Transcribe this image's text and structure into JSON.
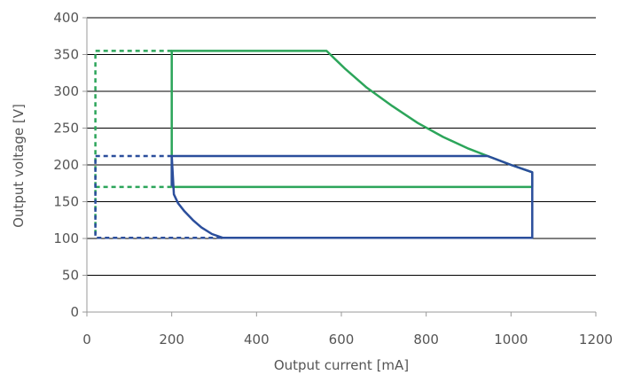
{
  "chart_data": {
    "type": "line",
    "title": "",
    "xlabel": "Output current [mA]",
    "ylabel": "Output voltage [V]",
    "xlim": [
      0,
      1200
    ],
    "ylim": [
      0,
      400
    ],
    "xticks": [
      0,
      200,
      400,
      600,
      800,
      1000,
      1200
    ],
    "yticks": [
      0,
      50,
      100,
      150,
      200,
      250,
      300,
      350,
      400
    ],
    "grid": "horizontal",
    "legend": "none",
    "colors": {
      "green": "#2ca55a",
      "blue": "#2b4e9c",
      "grid": "#000000",
      "axis": "#999999"
    },
    "series": [
      {
        "color": "#2ca55a",
        "style": "solid",
        "x": [
          200,
          200,
          565,
          610,
          660,
          720,
          780,
          840,
          900,
          945,
          1000,
          1050,
          1050,
          200
        ],
        "y": [
          170,
          355,
          355,
          330,
          305,
          280,
          257,
          238,
          222,
          212,
          200,
          190,
          170,
          170
        ]
      },
      {
        "color": "#2b4e9c",
        "style": "solid",
        "x": [
          200,
          200,
          205,
          215,
          230,
          250,
          270,
          295,
          320,
          1050,
          1050,
          1000,
          945,
          200
        ],
        "y": [
          170,
          212,
          160,
          148,
          137,
          125,
          115,
          106,
          101,
          101,
          190,
          200,
          212,
          212
        ]
      },
      {
        "color": "#2ca55a",
        "style": "dashed",
        "x": [
          200,
          20,
          20
        ],
        "y": [
          355,
          355,
          101
        ]
      },
      {
        "color": "#2ca55a",
        "style": "dashed",
        "x": [
          20,
          200
        ],
        "y": [
          170,
          170
        ]
      },
      {
        "color": "#2b4e9c",
        "style": "dashed",
        "x": [
          200,
          20,
          20,
          320
        ],
        "y": [
          212,
          212,
          101,
          101
        ]
      }
    ]
  }
}
